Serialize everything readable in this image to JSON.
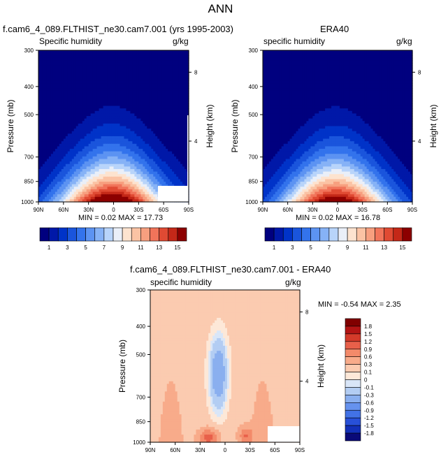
{
  "figure": {
    "title": "ANN",
    "variable_label": "Specific humidity",
    "variable_label_lower": "specific humidity",
    "units": "g/kg",
    "y_axis_label": "Pressure (mb)",
    "y2_axis_label": "Height (km)",
    "x_ticks": [
      "90N",
      "60N",
      "30N",
      "0",
      "30S",
      "60S",
      "90S"
    ],
    "y_ticks": [
      "300",
      "400",
      "500",
      "700",
      "850",
      "1000"
    ],
    "y2_ticks": [
      "8",
      "4"
    ]
  },
  "chart_data": [
    {
      "type": "heatmap",
      "title": "f.cam6_4_089.FLTHIST_ne30.cam7.001 (yrs 1995-2003)",
      "variable": "Specific humidity",
      "units": "g/kg",
      "xlabel": "",
      "ylabel": "Pressure (mb)",
      "y2label": "Height (km)",
      "xlim": [
        90,
        -90
      ],
      "ylim": [
        1000,
        300
      ],
      "stats_text": "MIN =  0.02   MAX =  17.73",
      "min": 0.02,
      "max": 17.73,
      "levels": [
        1,
        2,
        3,
        4,
        5,
        6,
        7,
        8,
        9,
        10,
        11,
        12,
        13,
        14,
        15
      ],
      "colorbar_labels": [
        "1",
        "3",
        "5",
        "7",
        "9",
        "11",
        "13",
        "15"
      ],
      "peak": {
        "lat": 2,
        "pressure": 980,
        "value": 17.73
      }
    },
    {
      "type": "heatmap",
      "title": "ERA40",
      "variable": "specific humidity",
      "units": "g/kg",
      "xlabel": "",
      "ylabel": "Pressure (mb)",
      "y2label": "Height (km)",
      "xlim": [
        90,
        -90
      ],
      "ylim": [
        1000,
        300
      ],
      "stats_text": "MIN =  0.02   MAX =  16.78",
      "min": 0.02,
      "max": 16.78,
      "levels": [
        1,
        2,
        3,
        4,
        5,
        6,
        7,
        8,
        9,
        10,
        11,
        12,
        13,
        14,
        15
      ],
      "colorbar_labels": [
        "1",
        "3",
        "5",
        "7",
        "9",
        "11",
        "13",
        "15"
      ],
      "peak": {
        "lat": 2,
        "pressure": 980,
        "value": 16.78
      }
    },
    {
      "type": "heatmap",
      "title": "f.cam6_4_089.FLTHIST_ne30.cam7.001 - ERA40",
      "variable": "specific humidity",
      "units": "g/kg",
      "xlabel": "",
      "ylabel": "Pressure (mb)",
      "y2label": "Height (km)",
      "xlim": [
        90,
        -90
      ],
      "ylim": [
        1000,
        300
      ],
      "stats_text": "MIN = -0.54   MAX =  2.35",
      "min": -0.54,
      "max": 2.35,
      "levels": [
        -1.8,
        -1.5,
        -1.2,
        -0.9,
        -0.6,
        -0.3,
        -0.1,
        0,
        0.1,
        0.3,
        0.6,
        0.9,
        1.2,
        1.5,
        1.8
      ],
      "colorbar_labels": [
        "1.8",
        "1.5",
        "1.2",
        "0.9",
        "0.6",
        "0.3",
        "0.1",
        "0",
        "-0.1",
        "-0.3",
        "-0.6",
        "-0.9",
        "-1.2",
        "-1.5",
        "-1.8"
      ]
    }
  ],
  "colors": {
    "abs_palette": [
      "#00007f",
      "#0018a8",
      "#0033c8",
      "#1a55dc",
      "#3373ec",
      "#5c93f2",
      "#86b2f6",
      "#b8d4fa",
      "#eaeff8",
      "#fde3cf",
      "#fbc3a4",
      "#f79f7f",
      "#f1745a",
      "#e04a33",
      "#c42818",
      "#8c0000"
    ],
    "diff_palette": [
      "#0a0a78",
      "#1330b8",
      "#2850d8",
      "#4272e6",
      "#6692ee",
      "#8aafef",
      "#b3cdf3",
      "#d9e6f8",
      "#fde8d8",
      "#fbcbb0",
      "#f8ab8a",
      "#f38a6a",
      "#e8604a",
      "#d43a2a",
      "#b31414",
      "#800000"
    ],
    "missing": "#ffffff"
  }
}
